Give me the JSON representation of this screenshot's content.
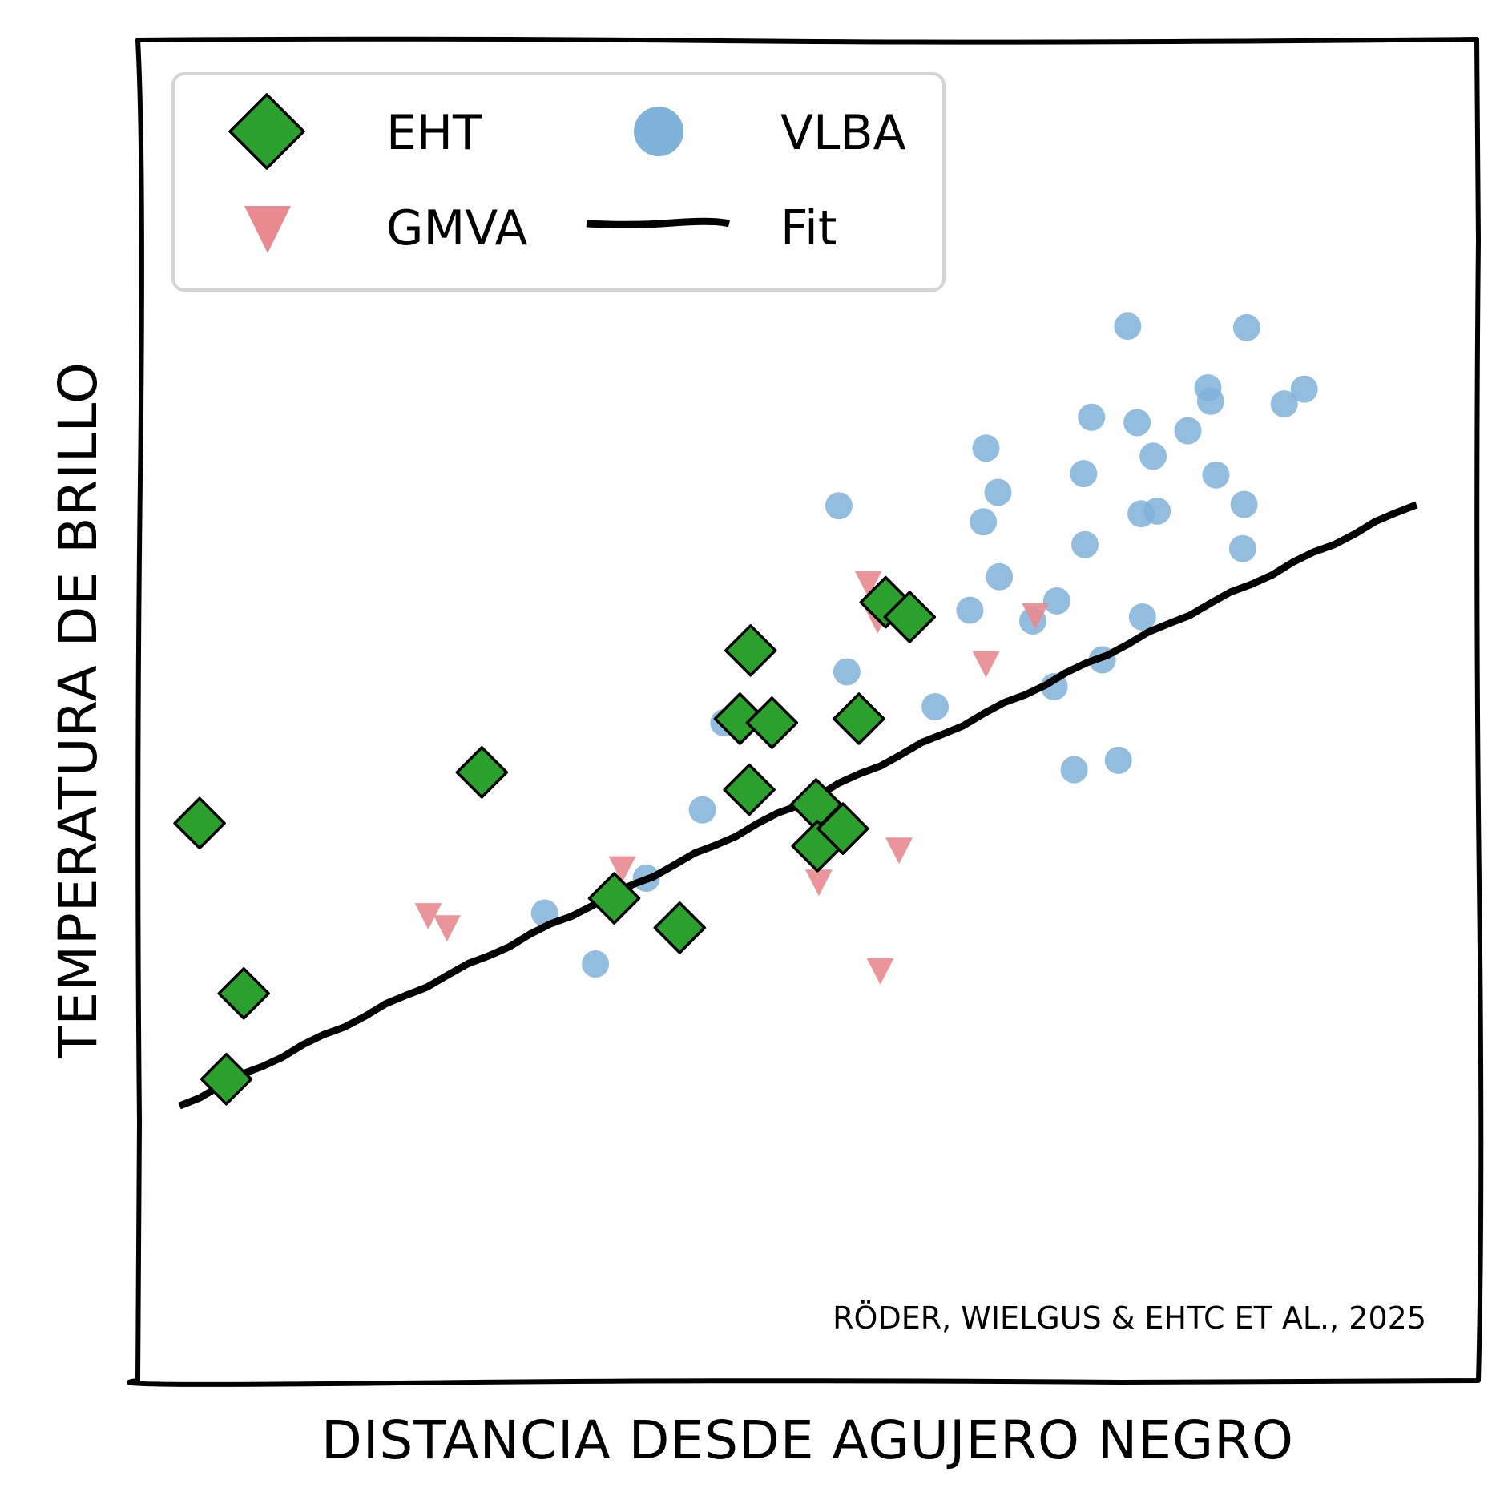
{
  "chart_data": {
    "type": "scatter",
    "title": "",
    "xlabel": "DISTANCIA DESDE AGUJERO NEGRO",
    "ylabel": "TEMPERATURA DE BRILLO",
    "xlim": [
      0,
      100
    ],
    "ylim": [
      0,
      100
    ],
    "grid": false,
    "ticks_shown": false,
    "legend": {
      "placement": "top-left",
      "columns": 2,
      "entries": [
        {
          "key": "eht",
          "label": "EHT",
          "marker": "diamond",
          "color": "#2ca02c"
        },
        {
          "key": "vlba",
          "label": "VLBA",
          "marker": "circle",
          "color": "#7fb2d9"
        },
        {
          "key": "gmva",
          "label": "GMVA",
          "marker": "triangle-down",
          "color": "#e88a8e"
        },
        {
          "key": "fit",
          "label": "Fit",
          "marker": "line",
          "color": "#000000"
        }
      ]
    },
    "annotation": "RÖDER, WIELGUS & EHTC ET AL., 2025",
    "series": [
      {
        "key": "vlba",
        "name": "VLBA",
        "marker": "circle",
        "color": "#7fb2d9",
        "points": [
          [
            30.3,
            34.9
          ],
          [
            34.1,
            31.1
          ],
          [
            37.9,
            37.5
          ],
          [
            42.1,
            42.6
          ],
          [
            43.7,
            49.1
          ],
          [
            52.9,
            52.9
          ],
          [
            52.3,
            65.3
          ],
          [
            59.5,
            50.3
          ],
          [
            62.1,
            57.5
          ],
          [
            63.3,
            69.6
          ],
          [
            63.1,
            64.1
          ],
          [
            64.2,
            66.3
          ],
          [
            64.3,
            60.0
          ],
          [
            66.8,
            56.7
          ],
          [
            68.6,
            58.2
          ],
          [
            68.4,
            51.8
          ],
          [
            69.9,
            45.6
          ],
          [
            70.6,
            67.7
          ],
          [
            70.7,
            62.4
          ],
          [
            71.2,
            71.9
          ],
          [
            72.0,
            53.8
          ],
          [
            73.2,
            46.3
          ],
          [
            73.9,
            78.7
          ],
          [
            74.6,
            71.5
          ],
          [
            74.9,
            64.7
          ],
          [
            75.0,
            57.0
          ],
          [
            75.8,
            69.0
          ],
          [
            76.1,
            64.9
          ],
          [
            78.4,
            70.9
          ],
          [
            79.9,
            74.1
          ],
          [
            80.1,
            73.1
          ],
          [
            80.5,
            67.6
          ],
          [
            82.5,
            62.1
          ],
          [
            82.6,
            65.4
          ],
          [
            82.8,
            78.6
          ],
          [
            85.6,
            72.9
          ],
          [
            87.1,
            74.0
          ]
        ]
      },
      {
        "key": "gmva",
        "name": "GMVA",
        "marker": "triangle-down",
        "color": "#e88a8e",
        "points": [
          [
            21.6,
            34.8
          ],
          [
            23.0,
            33.9
          ],
          [
            36.1,
            38.3
          ],
          [
            50.8,
            37.3
          ],
          [
            54.5,
            59.6
          ],
          [
            55.2,
            56.9
          ],
          [
            55.4,
            30.7
          ],
          [
            56.8,
            39.7
          ],
          [
            63.3,
            53.6
          ],
          [
            67.0,
            57.2
          ]
        ]
      },
      {
        "key": "eht",
        "name": "EHT",
        "marker": "diamond",
        "color": "#2ca02c",
        "points": [
          [
            4.5,
            41.6
          ],
          [
            6.5,
            22.5
          ],
          [
            7.8,
            28.9
          ],
          [
            25.6,
            45.4
          ],
          [
            35.5,
            36.0
          ],
          [
            40.4,
            33.8
          ],
          [
            44.9,
            49.4
          ],
          [
            45.6,
            44.1
          ],
          [
            45.7,
            54.5
          ],
          [
            47.3,
            49.1
          ],
          [
            50.6,
            43.0
          ],
          [
            50.7,
            39.9
          ],
          [
            52.6,
            41.2
          ],
          [
            53.8,
            49.4
          ],
          [
            55.8,
            58.1
          ],
          [
            57.6,
            57.0
          ]
        ]
      },
      {
        "key": "fit",
        "name": "Fit",
        "marker": "line",
        "color": "#000000",
        "points": [
          [
            3.0,
            20.5
          ],
          [
            95.5,
            65.5
          ]
        ]
      }
    ]
  }
}
